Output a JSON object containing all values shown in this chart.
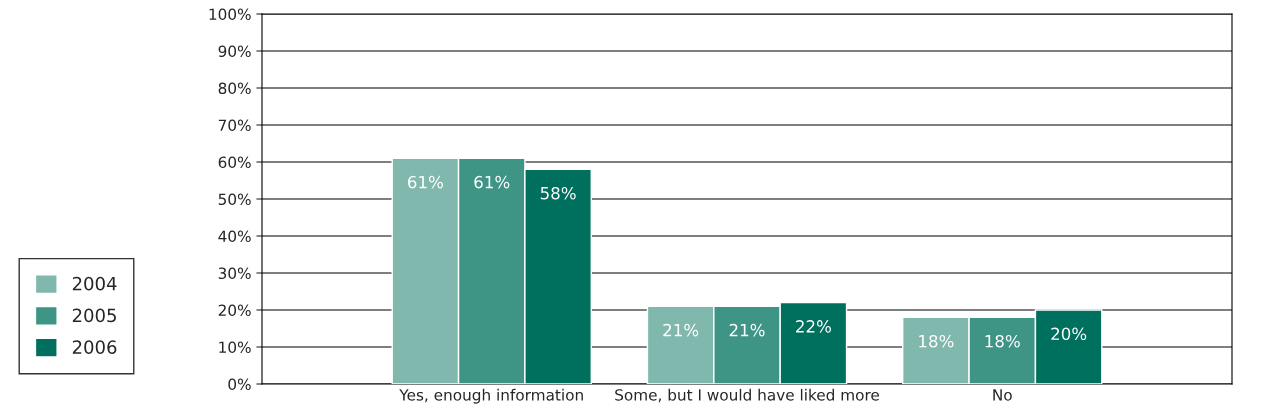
{
  "chart_data": {
    "type": "bar",
    "categories": [
      "Yes, enough information",
      "Some, but I would have liked more",
      "No"
    ],
    "series": [
      {
        "name": "2004",
        "color": "#80b8ae",
        "values": [
          61,
          21,
          18
        ],
        "value_labels": [
          "61%",
          "21%",
          "18%"
        ]
      },
      {
        "name": "2005",
        "color": "#3f9585",
        "values": [
          61,
          21,
          18
        ],
        "value_labels": [
          "61%",
          "21%",
          "18%"
        ]
      },
      {
        "name": "2006",
        "color": "#00705e",
        "values": [
          58,
          22,
          20
        ],
        "value_labels": [
          "58%",
          "22%",
          "20%"
        ]
      }
    ],
    "ylim": [
      0,
      100
    ],
    "yticks": [
      {
        "value": 0,
        "label": "0%"
      },
      {
        "value": 10,
        "label": "10%"
      },
      {
        "value": 20,
        "label": "20%"
      },
      {
        "value": 30,
        "label": "30%"
      },
      {
        "value": 40,
        "label": "40%"
      },
      {
        "value": 50,
        "label": "50%"
      },
      {
        "value": 60,
        "label": "60%"
      },
      {
        "value": 70,
        "label": "70%"
      },
      {
        "value": 80,
        "label": "80%"
      },
      {
        "value": 90,
        "label": "90%"
      },
      {
        "value": 100,
        "label": "100%"
      }
    ],
    "grid": "y",
    "legend": "left"
  }
}
